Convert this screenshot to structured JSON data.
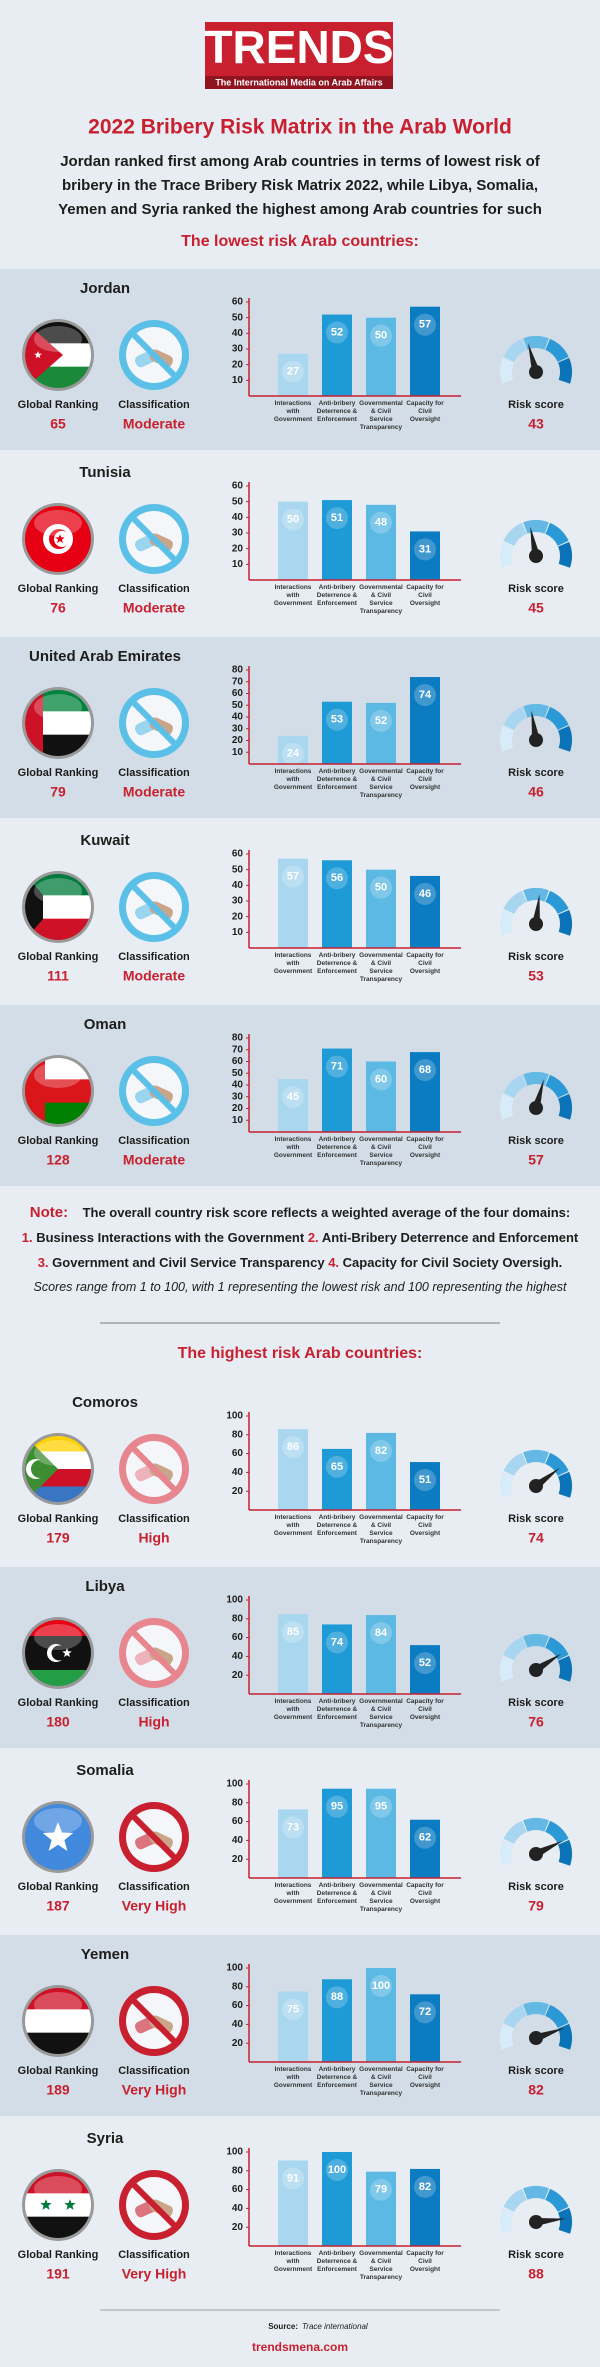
{
  "header": {
    "logo": "TRENDS",
    "logo_tagline": "The International Media on Arab Affairs",
    "title": "2022 Bribery Risk Matrix in the Arab World",
    "subtitle": "Jordan ranked first among Arab countries in terms of lowest risk of bribery in the Trace Bribery Risk Matrix 2022, while Libya, Somalia, Yemen and Syria ranked the highest among Arab countries for such risks"
  },
  "lowest_heading": "The lowest risk Arab countries:",
  "highest_heading": "The highest risk Arab countries:",
  "labels": {
    "global_ranking": "Global Ranking",
    "classification": "Classification",
    "risk_score": "Risk score"
  },
  "note": {
    "label": "Note:",
    "intro": "The overall country risk score reflects a weighted average of the four domains:",
    "items": [
      {
        "number": "1.",
        "text": "Business Interactions with the Government"
      },
      {
        "number": "2.",
        "text": "Anti-Bribery Deterrence and Enforcement"
      },
      {
        "number": "3.",
        "text": "Government and Civil Service Transparency"
      },
      {
        "number": "4.",
        "text": "Capacity for Civil Society Oversigh."
      }
    ],
    "scale": "Scores range from 1 to 100, with 1 representing the lowest risk and 100 representing the highest"
  },
  "footer": {
    "source_label": "Source:",
    "source": "Trace international",
    "url": "trendsmena.com"
  },
  "chart_data": [
    {
      "type": "bar",
      "country": "Jordan",
      "global_ranking": 65,
      "classification": "Moderate",
      "icon_color": "#5bc0e8",
      "risk_score": 43,
      "categories": [
        "Interactions with Government",
        "Anti-bribery Deterrence & Enforcement",
        "Governmental & Civil Service Transparency",
        "Capacity for Civil Oversight"
      ],
      "values": [
        27,
        52,
        50,
        57
      ],
      "colors": [
        "#a9d7ef",
        "#1e9ad6",
        "#5cb9e3",
        "#0b7cc1"
      ],
      "ylim": [
        0,
        60
      ],
      "yticks": [
        10,
        20,
        30,
        40,
        50,
        60
      ]
    },
    {
      "type": "bar",
      "country": "Tunisia",
      "global_ranking": 76,
      "classification": "Moderate",
      "icon_color": "#5bc0e8",
      "risk_score": 45,
      "categories": [
        "Interactions with Government",
        "Anti-bribery Deterrence & Enforcement",
        "Governmental & Civil Service Transparency",
        "Capacity for Civil Oversight"
      ],
      "values": [
        50,
        51,
        48,
        31
      ],
      "colors": [
        "#a9d7ef",
        "#1e9ad6",
        "#5cb9e3",
        "#0b7cc1"
      ],
      "ylim": [
        0,
        60
      ],
      "yticks": [
        10,
        20,
        30,
        40,
        50,
        60
      ]
    },
    {
      "type": "bar",
      "country": "United Arab Emirates",
      "global_ranking": 79,
      "classification": "Moderate",
      "icon_color": "#5bc0e8",
      "risk_score": 46,
      "categories": [
        "Interactions with Government",
        "Anti-bribery Deterrence & Enforcement",
        "Governmental & Civil Service Transparency",
        "Capacity for Civil Oversight"
      ],
      "values": [
        24,
        53,
        52,
        74
      ],
      "colors": [
        "#a9d7ef",
        "#1e9ad6",
        "#5cb9e3",
        "#0b7cc1"
      ],
      "ylim": [
        0,
        80
      ],
      "yticks": [
        10,
        20,
        30,
        40,
        50,
        60,
        70,
        80
      ]
    },
    {
      "type": "bar",
      "country": "Kuwait",
      "global_ranking": 111,
      "classification": "Moderate",
      "icon_color": "#5bc0e8",
      "risk_score": 53,
      "categories": [
        "Interactions with Government",
        "Anti-bribery Deterrence & Enforcement",
        "Governmental & Civil Service Transparency",
        "Capacity for Civil Oversight"
      ],
      "values": [
        57,
        56,
        50,
        46
      ],
      "colors": [
        "#a9d7ef",
        "#1e9ad6",
        "#5cb9e3",
        "#0b7cc1"
      ],
      "ylim": [
        0,
        60
      ],
      "yticks": [
        10,
        20,
        30,
        40,
        50,
        60
      ]
    },
    {
      "type": "bar",
      "country": "Oman",
      "global_ranking": 128,
      "classification": "Moderate",
      "icon_color": "#5bc0e8",
      "risk_score": 57,
      "categories": [
        "Interactions with Government",
        "Anti-bribery Deterrence & Enforcement",
        "Governmental & Civil Service Transparency",
        "Capacity for Civil Oversight"
      ],
      "values": [
        45,
        71,
        60,
        68
      ],
      "colors": [
        "#a9d7ef",
        "#1e9ad6",
        "#5cb9e3",
        "#0b7cc1"
      ],
      "ylim": [
        0,
        80
      ],
      "yticks": [
        10,
        20,
        30,
        40,
        50,
        60,
        70,
        80
      ]
    },
    {
      "type": "bar",
      "country": "Comoros",
      "global_ranking": 179,
      "classification": "High",
      "icon_color": "#e8868f",
      "risk_score": 74,
      "categories": [
        "Interactions with Government",
        "Anti-bribery Deterrence & Enforcement",
        "Governmental & Civil Service Transparency",
        "Capacity for Civil Oversight"
      ],
      "values": [
        86,
        65,
        82,
        51
      ],
      "colors": [
        "#a9d7ef",
        "#1e9ad6",
        "#5cb9e3",
        "#0b7cc1"
      ],
      "ylim": [
        0,
        100
      ],
      "yticks": [
        20,
        40,
        60,
        80,
        100
      ]
    },
    {
      "type": "bar",
      "country": "Libya",
      "global_ranking": 180,
      "classification": "High",
      "icon_color": "#e8868f",
      "risk_score": 76,
      "categories": [
        "Interactions with Government",
        "Anti-bribery Deterrence & Enforcement",
        "Governmental & Civil Service Transparency",
        "Capacity for Civil Oversight"
      ],
      "values": [
        85,
        74,
        84,
        52
      ],
      "colors": [
        "#a9d7ef",
        "#1e9ad6",
        "#5cb9e3",
        "#0b7cc1"
      ],
      "ylim": [
        0,
        100
      ],
      "yticks": [
        20,
        40,
        60,
        80,
        100
      ]
    },
    {
      "type": "bar",
      "country": "Somalia",
      "global_ranking": 187,
      "classification": "Very High",
      "icon_color": "#c8202f",
      "risk_score": 79,
      "categories": [
        "Interactions with Government",
        "Anti-bribery Deterrence & Enforcement",
        "Governmental & Civil Service Transparency",
        "Capacity for Civil Oversight"
      ],
      "values": [
        73,
        95,
        95,
        62
      ],
      "colors": [
        "#a9d7ef",
        "#1e9ad6",
        "#5cb9e3",
        "#0b7cc1"
      ],
      "ylim": [
        0,
        100
      ],
      "yticks": [
        20,
        40,
        60,
        80,
        100
      ]
    },
    {
      "type": "bar",
      "country": "Yemen",
      "global_ranking": 189,
      "classification": "Very High",
      "icon_color": "#c8202f",
      "risk_score": 82,
      "categories": [
        "Interactions with Government",
        "Anti-bribery Deterrence & Enforcement",
        "Governmental & Civil Service Transparency",
        "Capacity for Civil Oversight"
      ],
      "values": [
        75,
        88,
        100,
        72
      ],
      "colors": [
        "#a9d7ef",
        "#1e9ad6",
        "#5cb9e3",
        "#0b7cc1"
      ],
      "ylim": [
        0,
        100
      ],
      "yticks": [
        20,
        40,
        60,
        80,
        100
      ]
    },
    {
      "type": "bar",
      "country": "Syria",
      "global_ranking": 191,
      "classification": "Very High",
      "icon_color": "#c8202f",
      "risk_score": 88,
      "categories": [
        "Interactions with Government",
        "Anti-bribery Deterrence & Enforcement",
        "Governmental & Civil Service Transparency",
        "Capacity for Civil Oversight"
      ],
      "values": [
        91,
        100,
        79,
        82
      ],
      "colors": [
        "#a9d7ef",
        "#1e9ad6",
        "#5cb9e3",
        "#0b7cc1"
      ],
      "ylim": [
        0,
        100
      ],
      "yticks": [
        20,
        40,
        60,
        80,
        100
      ]
    }
  ]
}
